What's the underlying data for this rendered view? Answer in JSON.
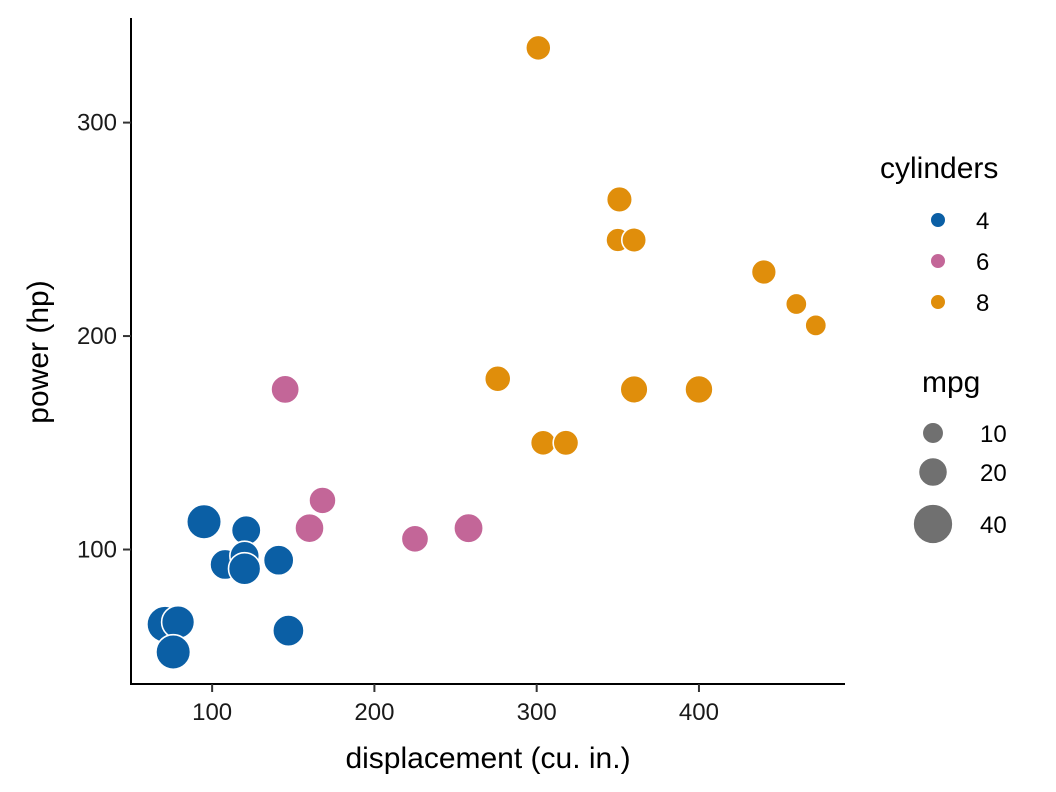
{
  "chart_data": {
    "type": "scatter",
    "xlabel": "displacement (cu. in.)",
    "ylabel": "power (hp)",
    "xlim": [
      50,
      490
    ],
    "ylim": [
      37,
      349
    ],
    "xticks": [
      100,
      200,
      300,
      400
    ],
    "yticks": [
      100,
      200,
      300
    ],
    "grid": false,
    "legend_position": "right",
    "color_legend": {
      "title": "cylinders",
      "entries": [
        {
          "label": "4",
          "color": "#0b5fa5"
        },
        {
          "label": "6",
          "color": "#c36698"
        },
        {
          "label": "8",
          "color": "#e08e0b"
        }
      ]
    },
    "size_legend": {
      "title": "mpg",
      "entries": [
        {
          "label": "10",
          "value": 10
        },
        {
          "label": "20",
          "value": 20
        },
        {
          "label": "40",
          "value": 40
        }
      ]
    },
    "series": [
      {
        "name": "4",
        "color": "#0b5fa5",
        "points": [
          {
            "x": 95,
            "y": 113,
            "mpg": 30.4
          },
          {
            "x": 121,
            "y": 109,
            "mpg": 21.4
          },
          {
            "x": 108,
            "y": 93,
            "mpg": 22.8
          },
          {
            "x": 120,
            "y": 97,
            "mpg": 21.5
          },
          {
            "x": 120,
            "y": 91,
            "mpg": 26.0
          },
          {
            "x": 141,
            "y": 95,
            "mpg": 22.8
          },
          {
            "x": 147,
            "y": 62,
            "mpg": 24.4
          },
          {
            "x": 71,
            "y": 65,
            "mpg": 33.9
          },
          {
            "x": 79,
            "y": 66,
            "mpg": 27.3
          },
          {
            "x": 76,
            "y": 52,
            "mpg": 30.4
          }
        ]
      },
      {
        "name": "6",
        "color": "#c36698",
        "points": [
          {
            "x": 145,
            "y": 175,
            "mpg": 19.7
          },
          {
            "x": 168,
            "y": 123,
            "mpg": 17.8
          },
          {
            "x": 160,
            "y": 110,
            "mpg": 21.0
          },
          {
            "x": 225,
            "y": 105,
            "mpg": 18.1
          },
          {
            "x": 258,
            "y": 110,
            "mpg": 21.4
          }
        ]
      },
      {
        "name": "8",
        "color": "#e08e0b",
        "points": [
          {
            "x": 301,
            "y": 335,
            "mpg": 15.0
          },
          {
            "x": 351,
            "y": 264,
            "mpg": 15.8
          },
          {
            "x": 350,
            "y": 245,
            "mpg": 13.3
          },
          {
            "x": 360,
            "y": 245,
            "mpg": 14.3
          },
          {
            "x": 440,
            "y": 230,
            "mpg": 14.7
          },
          {
            "x": 460,
            "y": 215,
            "mpg": 10.4
          },
          {
            "x": 472,
            "y": 205,
            "mpg": 10.4
          },
          {
            "x": 276,
            "y": 180,
            "mpg": 16.4
          },
          {
            "x": 360,
            "y": 175,
            "mpg": 18.7
          },
          {
            "x": 400,
            "y": 175,
            "mpg": 19.2
          },
          {
            "x": 304,
            "y": 150,
            "mpg": 15.2
          },
          {
            "x": 318,
            "y": 150,
            "mpg": 15.5
          }
        ]
      }
    ]
  }
}
